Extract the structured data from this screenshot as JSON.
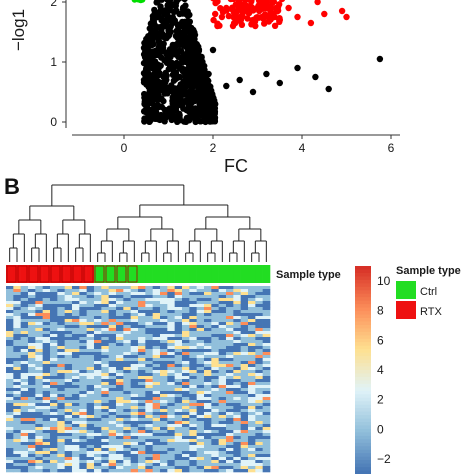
{
  "panels": {
    "b_label": "B"
  },
  "chart_data": [
    {
      "type": "scatter",
      "xlabel": "FC",
      "ylabel": "−log1",
      "xlim": [
        -1.6,
        6.4
      ],
      "ylim": [
        -0.05,
        3.35
      ],
      "x_ticks": [
        "0",
        "2",
        "4",
        "6"
      ],
      "x_tick_values": [
        0,
        2,
        4,
        6
      ],
      "y_ticks": [
        "0",
        "1",
        "2"
      ],
      "y_tick_values": [
        0,
        1,
        2
      ],
      "grid": false,
      "colors": {
        "up": "#ff0000",
        "down": "#00dd00",
        "neutral": "#000000"
      },
      "series": [
        {
          "color_key": "down",
          "points": [
            [
              0.25,
              2.2
            ],
            [
              0.3,
              2.45
            ],
            [
              0.35,
              2.6
            ],
            [
              0.2,
              2.35
            ],
            [
              0.38,
              2.8
            ],
            [
              0.32,
              2.95
            ],
            [
              0.28,
              2.15
            ],
            [
              0.36,
              2.5
            ],
            [
              0.4,
              2.25
            ],
            [
              0.22,
              2.7
            ],
            [
              0.34,
              3.1
            ],
            [
              0.3,
              2.05
            ]
          ]
        },
        {
          "color_key": "up",
          "points": [
            [
              2.1,
              1.6
            ],
            [
              2.2,
              1.75
            ],
            [
              2.3,
              1.9
            ],
            [
              2.4,
              2.05
            ],
            [
              2.5,
              1.65
            ],
            [
              2.6,
              2.2
            ],
            [
              2.7,
              1.85
            ],
            [
              2.8,
              2.4
            ],
            [
              2.9,
              1.7
            ],
            [
              3.0,
              2.1
            ],
            [
              3.1,
              1.95
            ],
            [
              3.2,
              2.5
            ],
            [
              3.3,
              1.8
            ],
            [
              3.4,
              2.3
            ],
            [
              3.5,
              1.7
            ],
            [
              3.6,
              2.6
            ],
            [
              3.7,
              1.9
            ],
            [
              3.8,
              2.2
            ],
            [
              3.9,
              1.75
            ],
            [
              4.0,
              2.45
            ],
            [
              4.2,
              1.65
            ],
            [
              4.35,
              2.0
            ],
            [
              4.5,
              1.8
            ],
            [
              4.7,
              2.1
            ],
            [
              4.9,
              1.85
            ],
            [
              5.0,
              1.75
            ],
            [
              5.2,
              2.2
            ],
            [
              2.15,
              2.6
            ],
            [
              2.35,
              2.8
            ],
            [
              2.55,
              2.95
            ],
            [
              2.75,
              2.7
            ],
            [
              3.05,
              2.85
            ],
            [
              3.35,
              3.0
            ],
            [
              2.45,
              1.6
            ],
            [
              2.65,
              1.62
            ],
            [
              2.95,
              1.6
            ],
            [
              3.15,
              1.64
            ],
            [
              2.05,
              1.8
            ],
            [
              2.25,
              2.3
            ],
            [
              3.55,
              2.05
            ]
          ]
        },
        {
          "color_key": "neutral",
          "points": [
            [
              0.5,
              0.3
            ],
            [
              0.6,
              0.5
            ],
            [
              0.7,
              0.9
            ],
            [
              0.8,
              1.3
            ],
            [
              0.9,
              1.8
            ],
            [
              1.0,
              2.4
            ],
            [
              1.1,
              2.9
            ],
            [
              1.2,
              2.2
            ],
            [
              1.3,
              1.6
            ],
            [
              1.4,
              1.0
            ],
            [
              1.5,
              0.6
            ],
            [
              1.6,
              0.4
            ],
            [
              1.7,
              0.3
            ],
            [
              1.8,
              0.5
            ],
            [
              1.9,
              0.8
            ],
            [
              2.0,
              1.2
            ],
            [
              0.75,
              2.0
            ],
            [
              0.65,
              1.4
            ],
            [
              0.55,
              0.9
            ],
            [
              1.05,
              1.5
            ],
            [
              1.15,
              1.2
            ],
            [
              0.95,
              0.7
            ],
            [
              1.25,
              0.9
            ],
            [
              1.35,
              0.5
            ],
            [
              2.3,
              0.6
            ],
            [
              2.6,
              0.7
            ],
            [
              2.9,
              0.5
            ],
            [
              3.2,
              0.8
            ],
            [
              3.5,
              0.65
            ],
            [
              3.9,
              0.9
            ],
            [
              4.3,
              0.75
            ],
            [
              4.6,
              0.55
            ],
            [
              5.75,
              1.05
            ],
            [
              1.1,
              0.2
            ],
            [
              1.0,
              0.15
            ],
            [
              0.85,
              0.25
            ],
            [
              1.2,
              0.35
            ]
          ]
        }
      ]
    },
    {
      "type": "heatmap",
      "title": "",
      "legend_sample_type": "Sample type",
      "row_label": "Sample type",
      "groups": [
        {
          "name": "Ctrl",
          "color": "#22dd22"
        },
        {
          "name": "RTX",
          "color": "#ee1111"
        }
      ],
      "sample_groups": [
        "RTX",
        "RTX",
        "RTX",
        "RTX",
        "RTX",
        "RTX",
        "RTX",
        "RTX",
        "RTX",
        "RTX",
        "RTX",
        "RTX",
        "Ctrl",
        "Ctrl",
        "Ctrl",
        "Ctrl",
        "Ctrl",
        "Ctrl",
        "Ctrl",
        "Ctrl",
        "Ctrl",
        "Ctrl",
        "Ctrl",
        "Ctrl",
        "Ctrl",
        "Ctrl",
        "Ctrl",
        "Ctrl",
        "Ctrl",
        "Ctrl",
        "Ctrl",
        "Ctrl",
        "Ctrl",
        "Ctrl",
        "Ctrl",
        "Ctrl"
      ],
      "colorbar_ticks": [
        "10",
        "8",
        "6",
        "4",
        "2",
        "0",
        "−2"
      ],
      "colorbar_tick_values": [
        10,
        8,
        6,
        4,
        2,
        0,
        -2
      ],
      "colorbar_range": [
        -3,
        11
      ],
      "palette": [
        "#4575b4",
        "#91bfdb",
        "#e0f3f8",
        "#fee090",
        "#fc8d59",
        "#d73027"
      ]
    }
  ]
}
